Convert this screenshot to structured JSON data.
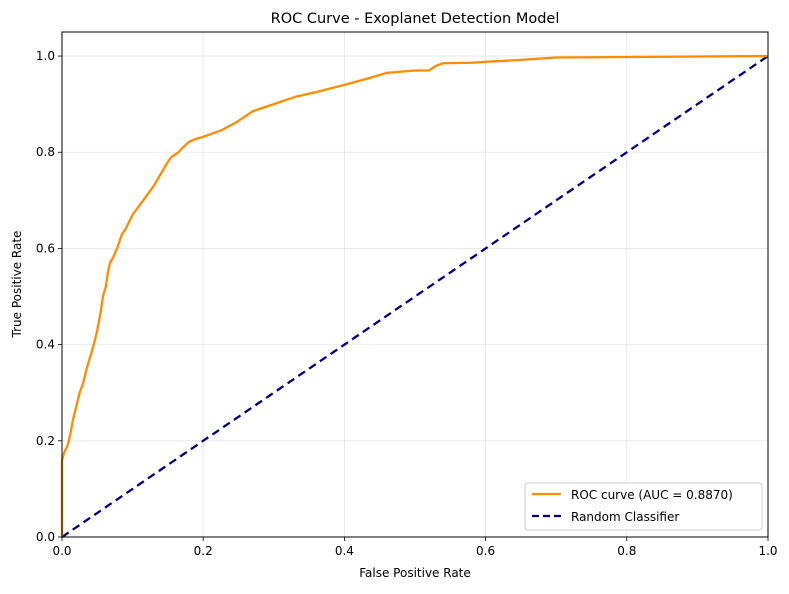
{
  "chart_data": {
    "type": "line",
    "title": "ROC Curve - Exoplanet Detection Model",
    "xlabel": "False Positive Rate",
    "ylabel": "True Positive Rate",
    "xlim": [
      0.0,
      1.0
    ],
    "ylim": [
      0.0,
      1.05
    ],
    "xticks": [
      "0.0",
      "0.2",
      "0.4",
      "0.6",
      "0.8",
      "1.0"
    ],
    "yticks": [
      "0.0",
      "0.2",
      "0.4",
      "0.6",
      "0.8",
      "1.0"
    ],
    "grid": true,
    "legend_position": "lower-right",
    "series": [
      {
        "name": "ROC curve (AUC = 0.8870)",
        "color": "#ff8c00",
        "style": "solid",
        "x": [
          0.0,
          0.0,
          0.003,
          0.008,
          0.012,
          0.015,
          0.02,
          0.025,
          0.03,
          0.035,
          0.04,
          0.045,
          0.05,
          0.055,
          0.058,
          0.062,
          0.065,
          0.068,
          0.072,
          0.078,
          0.085,
          0.09,
          0.095,
          0.1,
          0.11,
          0.12,
          0.13,
          0.14,
          0.15,
          0.155,
          0.16,
          0.165,
          0.17,
          0.175,
          0.18,
          0.19,
          0.2,
          0.225,
          0.25,
          0.27,
          0.3,
          0.33,
          0.36,
          0.4,
          0.43,
          0.46,
          0.5,
          0.52,
          0.53,
          0.54,
          0.58,
          0.6,
          0.65,
          0.7,
          0.8,
          0.9,
          1.0
        ],
        "y": [
          0.0,
          0.16,
          0.175,
          0.19,
          0.215,
          0.24,
          0.27,
          0.3,
          0.32,
          0.35,
          0.375,
          0.4,
          0.43,
          0.47,
          0.5,
          0.52,
          0.55,
          0.57,
          0.58,
          0.6,
          0.63,
          0.64,
          0.655,
          0.67,
          0.69,
          0.71,
          0.73,
          0.755,
          0.78,
          0.79,
          0.795,
          0.8,
          0.808,
          0.815,
          0.822,
          0.828,
          0.832,
          0.845,
          0.865,
          0.885,
          0.9,
          0.915,
          0.925,
          0.94,
          0.952,
          0.965,
          0.97,
          0.97,
          0.98,
          0.985,
          0.986,
          0.988,
          0.992,
          0.997,
          0.998,
          0.999,
          1.0
        ]
      },
      {
        "name": "Random Classifier",
        "color": "#000080",
        "style": "dashed",
        "x": [
          0.0,
          1.0
        ],
        "y": [
          0.0,
          1.0
        ]
      }
    ]
  }
}
